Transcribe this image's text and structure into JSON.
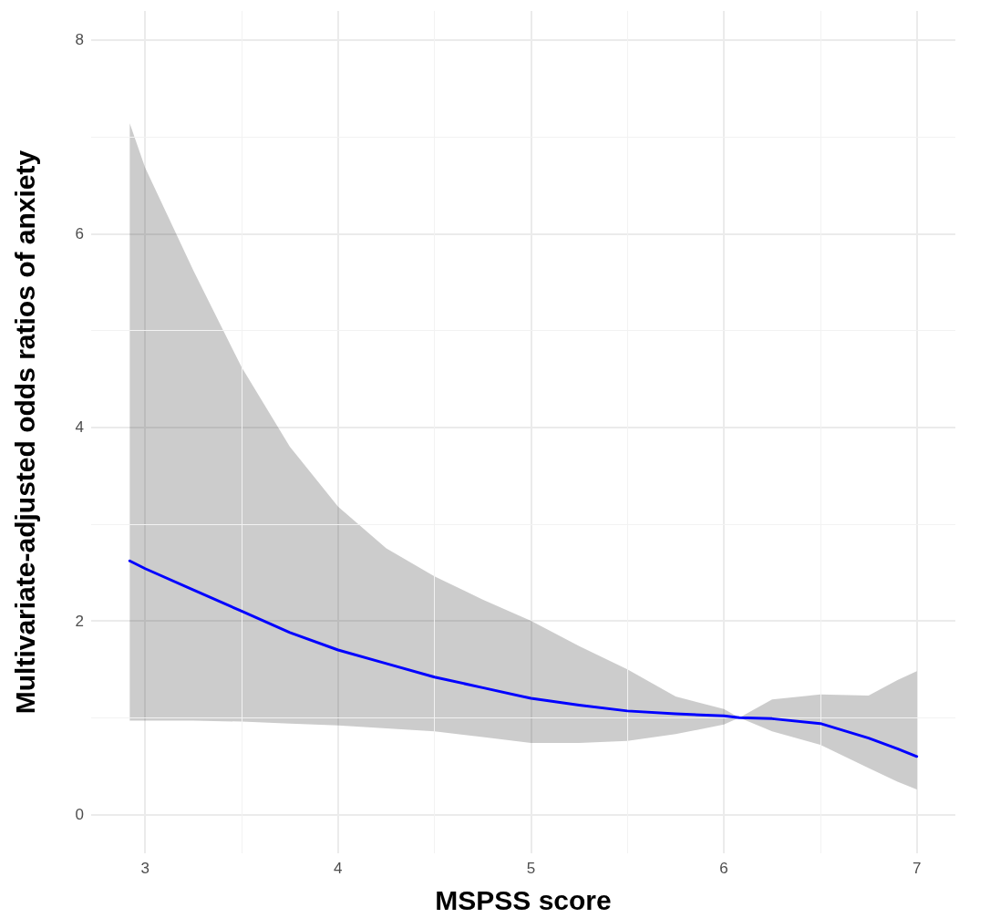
{
  "chart_data": {
    "type": "line",
    "xlabel": "MSPSS score",
    "ylabel": "Multivariate-adjusted odds ratios of anxiety",
    "x": [
      2.92,
      3,
      3.25,
      3.5,
      3.75,
      4,
      4.25,
      4.5,
      4.75,
      5,
      5.25,
      5.5,
      5.75,
      6,
      6.08,
      6.25,
      6.5,
      6.75,
      6.9,
      7
    ],
    "series": [
      {
        "color": "#0000ff",
        "values": [
          2.62,
          2.54,
          2.32,
          2.1,
          1.88,
          1.7,
          1.56,
          1.42,
          1.31,
          1.2,
          1.13,
          1.07,
          1.04,
          1.02,
          1.0,
          0.99,
          0.94,
          0.79,
          0.68,
          0.6
        ],
        "lower": [
          0.97,
          0.97,
          0.97,
          0.96,
          0.94,
          0.92,
          0.89,
          0.86,
          0.8,
          0.74,
          0.74,
          0.76,
          0.83,
          0.93,
          1.0,
          0.86,
          0.72,
          0.48,
          0.34,
          0.26
        ],
        "upper": [
          7.14,
          6.68,
          5.62,
          4.62,
          3.8,
          3.18,
          2.75,
          2.46,
          2.22,
          2.0,
          1.74,
          1.5,
          1.22,
          1.09,
          1.0,
          1.19,
          1.24,
          1.23,
          1.39,
          1.48
        ]
      }
    ],
    "xlim": [
      2.72,
      7.2
    ],
    "xticks": [
      3,
      4,
      5,
      6,
      7
    ],
    "ylim": [
      -0.4,
      8.3
    ],
    "yticks": [
      0,
      2,
      4,
      6,
      8
    ],
    "grid": true,
    "marker": "none",
    "line_style": "solid"
  }
}
